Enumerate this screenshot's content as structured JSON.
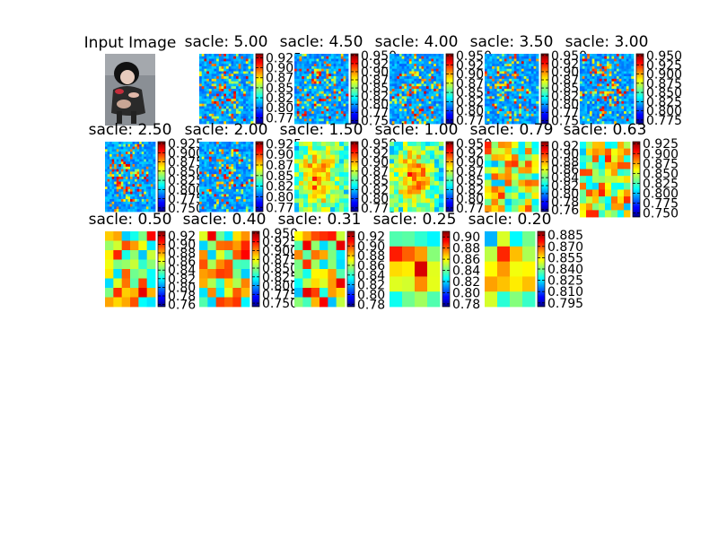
{
  "figure": {
    "background": "#ffffff",
    "colormap": "jet",
    "input_image_title": "Input Image"
  },
  "chart_data": [
    {
      "type": "heatmap",
      "title": "sacle: 5.00",
      "colorbar_ticks": [
        "0.775",
        "0.800",
        "0.825",
        "0.850",
        "0.875",
        "0.900",
        "0.925"
      ],
      "colorbar_range": [
        0.76,
        0.935
      ],
      "pattern": "fine"
    },
    {
      "type": "heatmap",
      "title": "sacle: 4.50",
      "colorbar_ticks": [
        "0.750",
        "0.775",
        "0.800",
        "0.825",
        "0.850",
        "0.875",
        "0.900",
        "0.925",
        "0.950"
      ],
      "colorbar_range": [
        0.74,
        0.955
      ],
      "pattern": "fine"
    },
    {
      "type": "heatmap",
      "title": "sacle: 4.00",
      "colorbar_ticks": [
        "0.775",
        "0.800",
        "0.825",
        "0.850",
        "0.875",
        "0.900",
        "0.925",
        "0.950"
      ],
      "colorbar_range": [
        0.765,
        0.955
      ],
      "pattern": "fine"
    },
    {
      "type": "heatmap",
      "title": "sacle: 3.50",
      "colorbar_ticks": [
        "0.750",
        "0.775",
        "0.800",
        "0.825",
        "0.850",
        "0.875",
        "0.900",
        "0.925",
        "0.950"
      ],
      "colorbar_range": [
        0.74,
        0.955
      ],
      "pattern": "fine"
    },
    {
      "type": "heatmap",
      "title": "sacle: 3.00",
      "colorbar_ticks": [
        "0.775",
        "0.800",
        "0.825",
        "0.850",
        "0.875",
        "0.900",
        "0.925",
        "0.950"
      ],
      "colorbar_range": [
        0.765,
        0.955
      ],
      "pattern": "fine"
    },
    {
      "type": "heatmap",
      "title": "sacle: 2.50",
      "colorbar_ticks": [
        "0.750",
        "0.775",
        "0.800",
        "0.825",
        "0.850",
        "0.875",
        "0.900",
        "0.925"
      ],
      "colorbar_range": [
        0.74,
        0.93
      ],
      "pattern": "fine"
    },
    {
      "type": "heatmap",
      "title": "sacle: 2.00",
      "colorbar_ticks": [
        "0.775",
        "0.800",
        "0.825",
        "0.850",
        "0.875",
        "0.900",
        "0.925"
      ],
      "colorbar_range": [
        0.765,
        0.93
      ],
      "pattern": "fine"
    },
    {
      "type": "heatmap",
      "title": "sacle: 1.50",
      "colorbar_ticks": [
        "0.775",
        "0.800",
        "0.825",
        "0.850",
        "0.875",
        "0.900",
        "0.925",
        "0.950"
      ],
      "colorbar_range": [
        0.765,
        0.955
      ],
      "pattern": "medium"
    },
    {
      "type": "heatmap",
      "title": "sacle: 1.00",
      "colorbar_ticks": [
        "0.775",
        "0.800",
        "0.825",
        "0.850",
        "0.875",
        "0.900",
        "0.925",
        "0.950"
      ],
      "colorbar_range": [
        0.765,
        0.955
      ],
      "pattern": "medium"
    },
    {
      "type": "heatmap",
      "title": "sacle: 0.79",
      "colorbar_ticks": [
        "0.76",
        "0.78",
        "0.80",
        "0.82",
        "0.84",
        "0.86",
        "0.88",
        "0.90",
        "0.92"
      ],
      "colorbar_range": [
        0.755,
        0.93
      ],
      "pattern": "coarse"
    },
    {
      "type": "heatmap",
      "title": "sacle: 0.63",
      "colorbar_ticks": [
        "0.750",
        "0.775",
        "0.800",
        "0.825",
        "0.850",
        "0.875",
        "0.900",
        "0.925"
      ],
      "colorbar_range": [
        0.74,
        0.93
      ],
      "pattern": "coarse"
    },
    {
      "type": "heatmap",
      "title": "sacle: 0.50",
      "colorbar_ticks": [
        "0.76",
        "0.78",
        "0.80",
        "0.82",
        "0.84",
        "0.86",
        "0.88",
        "0.90",
        "0.92"
      ],
      "colorbar_range": [
        0.755,
        0.93
      ],
      "pattern": "blocky"
    },
    {
      "type": "heatmap",
      "title": "sacle: 0.40",
      "colorbar_ticks": [
        "0.750",
        "0.775",
        "0.800",
        "0.825",
        "0.850",
        "0.875",
        "0.900",
        "0.925",
        "0.950"
      ],
      "colorbar_range": [
        0.74,
        0.955
      ],
      "pattern": "blocky"
    },
    {
      "type": "heatmap",
      "title": "sacle: 0.31",
      "colorbar_ticks": [
        "0.78",
        "0.80",
        "0.82",
        "0.84",
        "0.86",
        "0.88",
        "0.90",
        "0.92"
      ],
      "colorbar_range": [
        0.775,
        0.93
      ],
      "pattern": "blocky"
    },
    {
      "type": "heatmap",
      "title": "sacle: 0.25",
      "colorbar_ticks": [
        "0.78",
        "0.80",
        "0.82",
        "0.84",
        "0.86",
        "0.88",
        "0.90"
      ],
      "colorbar_range": [
        0.775,
        0.91
      ],
      "pattern": "smooth"
    },
    {
      "type": "heatmap",
      "title": "sacle: 0.20",
      "colorbar_ticks": [
        "0.795",
        "0.810",
        "0.825",
        "0.840",
        "0.855",
        "0.870",
        "0.885"
      ],
      "colorbar_range": [
        0.79,
        0.89
      ],
      "pattern": "smooth"
    }
  ]
}
